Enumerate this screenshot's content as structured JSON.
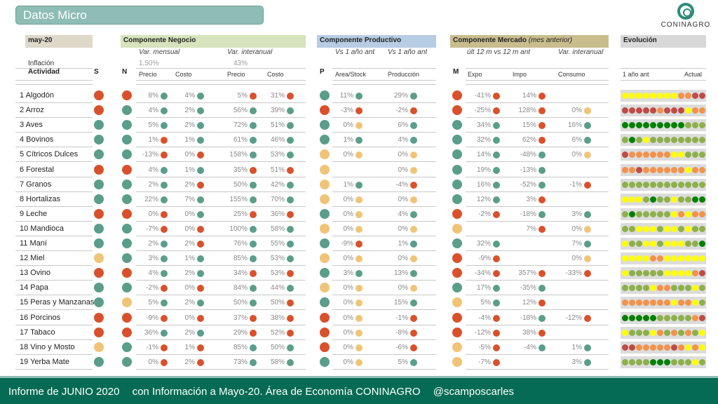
{
  "title": "Datos Micro",
  "logo": {
    "text": "CONINAGRO"
  },
  "period": "may-20",
  "inflation": {
    "label": "Inflación",
    "monthly": "1,50%",
    "yearly": "43%"
  },
  "sections": {
    "negocio": {
      "title": "Componente Negocio",
      "sub1": "Var. mensual",
      "sub2": "Var. interanual",
      "cols": [
        "Precio",
        "Costo",
        "Precio",
        "Costo"
      ]
    },
    "productivo": {
      "title": "Componente Productivo",
      "sub1": "Vs 1 año ant",
      "sub2": "Vs 1 año ant",
      "letter": "P",
      "cols": [
        "Area/Stock",
        "Producción"
      ]
    },
    "mercado": {
      "title": "Componente Mercado",
      "title_note": "(mes anterior)",
      "sub1": "últ 12 m vs 12 m ant",
      "sub2": "Var. interanual",
      "letter": "M",
      "cols": [
        "Expo",
        "Impo",
        "Consumo"
      ]
    },
    "evolucion": {
      "title": "Evolución",
      "from": "1 año ant",
      "to": "Actual"
    }
  },
  "columns": {
    "actividad": "Actividad",
    "s": "S",
    "n": "N"
  },
  "colors": {
    "G": "#5a9e8a",
    "R": "#d9512c",
    "A": "#f0c477",
    "y": "#ffff00",
    "o": "#f4914a",
    "r": "#c04a45",
    "g": "#008000",
    "l": "#8db04a"
  },
  "rows": [
    {
      "name": "1 Algodón",
      "s": "R",
      "n": "R",
      "np": [
        "8%",
        "G"
      ],
      "nc": [
        "4%",
        "G"
      ],
      "ip": [
        "5%",
        "R"
      ],
      "ic": [
        "31%",
        "R"
      ],
      "p": "G",
      "pa": [
        "11%",
        "G"
      ],
      "pp": [
        "29%",
        "G"
      ],
      "m": "R",
      "me": [
        "-41%",
        "R"
      ],
      "mi": [
        "14%",
        "R"
      ],
      "mc": [
        "",
        ""
      ],
      "evo": "yyyyyyyyoorr"
    },
    {
      "name": "2 Arroz",
      "s": "R",
      "n": "G",
      "np": [
        "4%",
        "G"
      ],
      "nc": [
        "2%",
        "G"
      ],
      "ip": [
        "56%",
        "G"
      ],
      "ic": [
        "39%",
        "G"
      ],
      "p": "R",
      "pa": [
        "-3%",
        "R"
      ],
      "pp": [
        "-2%",
        "R"
      ],
      "m": "R",
      "me": [
        "-25%",
        "R"
      ],
      "mi": [
        "128%",
        "R"
      ],
      "mc": [
        "0%",
        "A"
      ],
      "evo": "rrrrrorrryoo"
    },
    {
      "name": "3 Aves",
      "s": "G",
      "n": "G",
      "np": [
        "5%",
        "G"
      ],
      "nc": [
        "2%",
        "G"
      ],
      "ip": [
        "72%",
        "G"
      ],
      "ic": [
        "51%",
        "G"
      ],
      "p": "G",
      "pa": [
        "0%",
        "A"
      ],
      "pp": [
        "6%",
        "G"
      ],
      "m": "G",
      "me": [
        "34%",
        "G"
      ],
      "mi": [
        "15%",
        "R"
      ],
      "mc": [
        "16%",
        "G"
      ],
      "evo": "ggggggggglll"
    },
    {
      "name": "4 Bovinos",
      "s": "G",
      "n": "G",
      "np": [
        "1%",
        "R"
      ],
      "nc": [
        "1%",
        "G"
      ],
      "ip": [
        "61%",
        "G"
      ],
      "ic": [
        "46%",
        "G"
      ],
      "p": "G",
      "pa": [
        "1%",
        "G"
      ],
      "pp": [
        "4%",
        "G"
      ],
      "m": "G",
      "me": [
        "32%",
        "G"
      ],
      "mi": [
        "62%",
        "R"
      ],
      "mc": [
        "6%",
        "G"
      ],
      "evo": "lglyllllllll"
    },
    {
      "name": "5 Cítricos Dulces",
      "s": "G",
      "n": "G",
      "np": [
        "-13%",
        "R"
      ],
      "nc": [
        "0%",
        "R"
      ],
      "ip": [
        "158%",
        "G"
      ],
      "ic": [
        "53%",
        "G"
      ],
      "p": "A",
      "pa": [
        "0%",
        "A"
      ],
      "pp": [
        "0%",
        "A"
      ],
      "m": "G",
      "me": [
        "14%",
        "G"
      ],
      "mi": [
        "-48%",
        "G"
      ],
      "mc": [
        "0%",
        "A"
      ],
      "evo": "rooooooyyllll"
    },
    {
      "name": "6 Forestal",
      "s": "R",
      "n": "R",
      "np": [
        "4%",
        "G"
      ],
      "nc": [
        "1%",
        "G"
      ],
      "ip": [
        "35%",
        "R"
      ],
      "ic": [
        "51%",
        "R"
      ],
      "p": "A",
      "pa": [
        "",
        ""
      ],
      "pp": [
        "0%",
        "A"
      ],
      "m": "G",
      "me": [
        "19%",
        "G"
      ],
      "mi": [
        "-13%",
        "G"
      ],
      "mc": [
        "",
        ""
      ],
      "evo": "oorooooooyoo"
    },
    {
      "name": "7 Granos",
      "s": "G",
      "n": "G",
      "np": [
        "2%",
        "G"
      ],
      "nc": [
        "2%",
        "R"
      ],
      "ip": [
        "50%",
        "G"
      ],
      "ic": [
        "42%",
        "G"
      ],
      "p": "A",
      "pa": [
        "1%",
        "G"
      ],
      "pp": [
        "-4%",
        "R"
      ],
      "m": "G",
      "me": [
        "16%",
        "G"
      ],
      "mi": [
        "-52%",
        "G"
      ],
      "mc": [
        "-1%",
        "R"
      ],
      "evo": "llllllllllll"
    },
    {
      "name": "8 Hortalizas",
      "s": "G",
      "n": "G",
      "np": [
        "22%",
        "G"
      ],
      "nc": [
        "7%",
        "G"
      ],
      "ip": [
        "155%",
        "G"
      ],
      "ic": [
        "70%",
        "G"
      ],
      "p": "A",
      "pa": [
        "0%",
        "A"
      ],
      "pp": [
        "0%",
        "A"
      ],
      "m": "G",
      "me": [
        "12%",
        "G"
      ],
      "mi": [
        "3%",
        "R"
      ],
      "mc": [
        "",
        ""
      ],
      "evo": "yyylgllyllgg"
    },
    {
      "name": "9 Leche",
      "s": "R",
      "n": "R",
      "np": [
        "0%",
        "R"
      ],
      "nc": [
        "0%",
        "G"
      ],
      "ip": [
        "25%",
        "R"
      ],
      "ic": [
        "36%",
        "R"
      ],
      "p": "G",
      "pa": [
        "0%",
        "A"
      ],
      "pp": [
        "4%",
        "G"
      ],
      "m": "R",
      "me": [
        "-2%",
        "R"
      ],
      "mi": [
        "-18%",
        "G"
      ],
      "mc": [
        "3%",
        "G"
      ],
      "evo": "lglllllyoyoo"
    },
    {
      "name": "10 Mandioca",
      "s": "G",
      "n": "G",
      "np": [
        "-7%",
        "R"
      ],
      "nc": [
        "0%",
        "R"
      ],
      "ip": [
        "100%",
        "G"
      ],
      "ic": [
        "58%",
        "G"
      ],
      "p": "A",
      "pa": [
        "0%",
        "A"
      ],
      "pp": [
        "0%",
        "A"
      ],
      "m": "A",
      "me": [
        "",
        ""
      ],
      "mi": [
        "7%",
        "R"
      ],
      "mc": [
        "0%",
        "A"
      ],
      "evo": "llyyylyylyll"
    },
    {
      "name": "11 Maní",
      "s": "G",
      "n": "G",
      "np": [
        "2%",
        "G"
      ],
      "nc": [
        "2%",
        "R"
      ],
      "ip": [
        "76%",
        "G"
      ],
      "ic": [
        "55%",
        "G"
      ],
      "p": "G",
      "pa": [
        "-9%",
        "R"
      ],
      "pp": [
        "1%",
        "G"
      ],
      "m": "G",
      "me": [
        "32%",
        "G"
      ],
      "mi": [
        "",
        ""
      ],
      "mc": [
        "7%",
        "G"
      ],
      "evo": "yllyylyyyllg"
    },
    {
      "name": "12 Miel",
      "s": "A",
      "n": "G",
      "np": [
        "3%",
        "G"
      ],
      "nc": [
        "1%",
        "G"
      ],
      "ip": [
        "85%",
        "G"
      ],
      "ic": [
        "53%",
        "G"
      ],
      "p": "A",
      "pa": [
        "0%",
        "A"
      ],
      "pp": [
        "0%",
        "A"
      ],
      "m": "R",
      "me": [
        "-9%",
        "R"
      ],
      "mi": [
        "",
        ""
      ],
      "mc": [
        "0%",
        "A"
      ],
      "evo": "yyyyooyyyyyy"
    },
    {
      "name": "13 Ovino",
      "s": "R",
      "n": "R",
      "np": [
        "4%",
        "G"
      ],
      "nc": [
        "2%",
        "G"
      ],
      "ip": [
        "34%",
        "R"
      ],
      "ic": [
        "53%",
        "R"
      ],
      "p": "G",
      "pa": [
        "3%",
        "G"
      ],
      "pp": [
        "13%",
        "G"
      ],
      "m": "R",
      "me": [
        "-34%",
        "R"
      ],
      "mi": [
        "357%",
        "R"
      ],
      "mc": [
        "-33%",
        "R"
      ],
      "evo": "ylllllyyyyorr"
    },
    {
      "name": "14 Papa",
      "s": "G",
      "n": "G",
      "np": [
        "-2%",
        "R"
      ],
      "nc": [
        "0%",
        "R"
      ],
      "ip": [
        "84%",
        "G"
      ],
      "ic": [
        "44%",
        "G"
      ],
      "p": "A",
      "pa": [
        "0%",
        "A"
      ],
      "pp": [
        "0%",
        "A"
      ],
      "m": "G",
      "me": [
        "17%",
        "G"
      ],
      "mi": [
        "-35%",
        "G"
      ],
      "mc": [
        "",
        ""
      ],
      "evo": "llllyoolllyll"
    },
    {
      "name": "15 Peras y Manzanas",
      "s": "G",
      "n": "A",
      "np": [
        "5%",
        "G"
      ],
      "nc": [
        "2%",
        "G"
      ],
      "ip": [
        "50%",
        "G"
      ],
      "ic": [
        "50%",
        "R"
      ],
      "p": "G",
      "pa": [
        "0%",
        "A"
      ],
      "pp": [
        "15%",
        "G"
      ],
      "m": "A",
      "me": [
        "5%",
        "G"
      ],
      "mi": [
        "12%",
        "R"
      ],
      "mc": [
        "",
        ""
      ],
      "evo": "oooooooyooyl"
    },
    {
      "name": "16 Porcinos",
      "s": "R",
      "n": "R",
      "np": [
        "-9%",
        "R"
      ],
      "nc": [
        "0%",
        "R"
      ],
      "ip": [
        "37%",
        "R"
      ],
      "ic": [
        "38%",
        "R"
      ],
      "p": "R",
      "pa": [
        "0%",
        "A"
      ],
      "pp": [
        "-1%",
        "R"
      ],
      "m": "R",
      "me": [
        "-4%",
        "R"
      ],
      "mi": [
        "-18%",
        "G"
      ],
      "mc": [
        "-12%",
        "R"
      ],
      "evo": "ggggglllllor"
    },
    {
      "name": "17 Tabaco",
      "s": "R",
      "n": "R",
      "np": [
        "36%",
        "G"
      ],
      "nc": [
        "2%",
        "G"
      ],
      "ip": [
        "29%",
        "R"
      ],
      "ic": [
        "52%",
        "R"
      ],
      "p": "R",
      "pa": [
        "0%",
        "A"
      ],
      "pp": [
        "-8%",
        "R"
      ],
      "m": "R",
      "me": [
        "-12%",
        "R"
      ],
      "mi": [
        "38%",
        "R"
      ],
      "mc": [
        "",
        ""
      ],
      "evo": "ylllyolololyyr"
    },
    {
      "name": "18 Vino y Mosto",
      "s": "A",
      "n": "G",
      "np": [
        "-1%",
        "R"
      ],
      "nc": [
        "1%",
        "R"
      ],
      "ip": [
        "85%",
        "G"
      ],
      "ic": [
        "50%",
        "G"
      ],
      "p": "R",
      "pa": [
        "0%",
        "A"
      ],
      "pp": [
        "-6%",
        "R"
      ],
      "m": "A",
      "me": [
        "-5%",
        "R"
      ],
      "mi": [
        "-4%",
        "G"
      ],
      "mc": [
        "1%",
        "G"
      ],
      "evo": "rroooooroyoy"
    },
    {
      "name": "19 Yerba Mate",
      "s": "G",
      "n": "G",
      "np": [
        "0%",
        "R"
      ],
      "nc": [
        "2%",
        "R"
      ],
      "ip": [
        "73%",
        "G"
      ],
      "ic": [
        "58%",
        "G"
      ],
      "p": "G",
      "pa": [
        "0%",
        "A"
      ],
      "pp": [
        "5%",
        "G"
      ],
      "m": "A",
      "me": [
        "-7%",
        "R"
      ],
      "mi": [
        "",
        ""
      ],
      "mc": [
        "3%",
        "G"
      ],
      "evo": "llllggglllyl"
    }
  ],
  "footer": [
    "Informe de JUNIO 2020",
    "con Información a Mayo-20. Área de Economía CONINAGRO",
    "@scamposcarles"
  ]
}
